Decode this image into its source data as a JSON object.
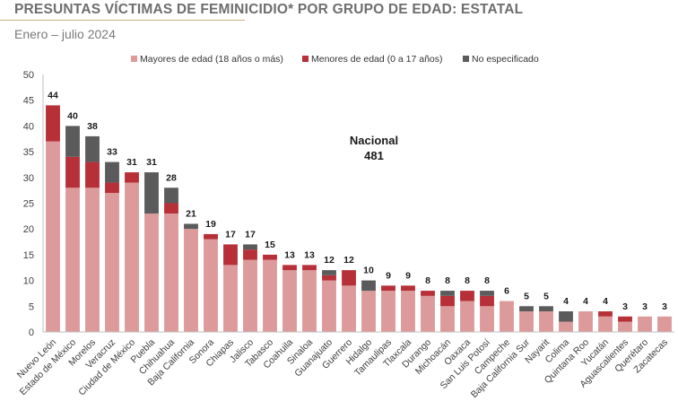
{
  "header": {
    "title": "PRESUNTAS VÍCTIMAS DE FEMINICIDIO* POR GRUPO DE EDAD: ESTATAL",
    "subtitle": "Enero – julio 2024"
  },
  "chart_data": {
    "type": "bar",
    "stacked": true,
    "title": "PRESUNTAS VÍCTIMAS DE FEMINICIDIO* POR GRUPO DE EDAD: ESTATAL",
    "subtitle": "Enero – julio 2024",
    "xlabel": "",
    "ylabel": "",
    "ylim": [
      0,
      50
    ],
    "yticks": [
      0,
      5,
      10,
      15,
      20,
      25,
      30,
      35,
      40,
      45,
      50
    ],
    "grid": false,
    "legend_position": "top-center",
    "categories": [
      "Nuevo León",
      "Estado de México",
      "Morelos",
      "Veracruz",
      "Ciudad de México",
      "Puebla",
      "Chihuahua",
      "Baja California",
      "Sonora",
      "Chiapas",
      "Jalisco",
      "Tabasco",
      "Coahuila",
      "Sinaloa",
      "Guanajuato",
      "Guerrero",
      "Hidalgo",
      "Tamaulipas",
      "Tlaxcala",
      "Durango",
      "Michoacán",
      "Oaxaca",
      "San Luis Potosí",
      "Campeche",
      "Baja California Sur",
      "Nayarit",
      "Colima",
      "Quintana Roo",
      "Yucatán",
      "Aguascalientes",
      "Querétaro",
      "Zacatecas"
    ],
    "series": [
      {
        "name": "Mayores de edad (18 años o más)",
        "color": "#dc9a9a",
        "values": [
          37,
          28,
          28,
          27,
          29,
          23,
          23,
          20,
          18,
          13,
          14,
          14,
          12,
          12,
          10,
          9,
          8,
          8,
          8,
          7,
          5,
          6,
          5,
          6,
          4,
          4,
          2,
          4,
          3,
          2,
          3,
          3
        ]
      },
      {
        "name": "Menores de edad (0 a 17 años)",
        "color": "#b73038",
        "values": [
          7,
          6,
          5,
          2,
          2,
          0,
          2,
          0,
          1,
          4,
          2,
          1,
          1,
          1,
          1,
          3,
          0,
          1,
          1,
          1,
          2,
          2,
          2,
          0,
          0,
          0,
          0,
          0,
          1,
          1,
          0,
          0
        ]
      },
      {
        "name": "No especificado",
        "color": "#5b5b5b",
        "values": [
          0,
          6,
          5,
          4,
          0,
          8,
          3,
          1,
          0,
          0,
          1,
          0,
          0,
          0,
          1,
          0,
          2,
          0,
          0,
          0,
          1,
          0,
          1,
          0,
          1,
          1,
          2,
          0,
          0,
          0,
          0,
          0
        ]
      }
    ],
    "totals": [
      44,
      40,
      38,
      33,
      31,
      31,
      28,
      21,
      19,
      17,
      17,
      15,
      13,
      13,
      12,
      12,
      10,
      9,
      9,
      8,
      8,
      8,
      8,
      6,
      5,
      5,
      4,
      4,
      4,
      3,
      3,
      3
    ],
    "annotation": {
      "label": "Nacional",
      "value": "481"
    }
  }
}
